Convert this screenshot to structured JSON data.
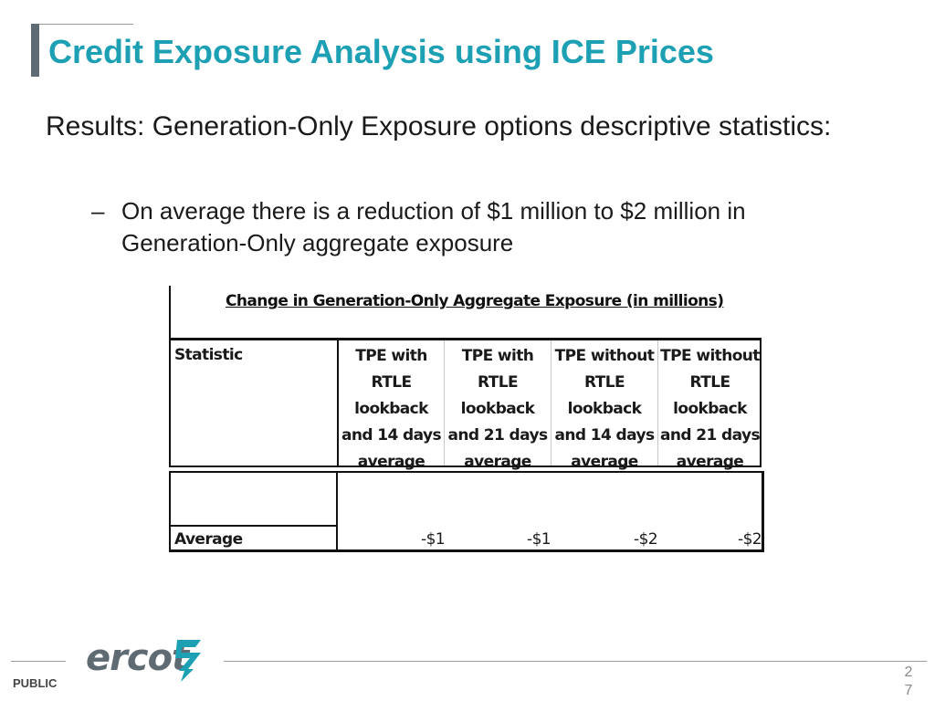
{
  "slide": {
    "title": "Credit Exposure Analysis using ICE Prices",
    "body": "Results: Generation-Only Exposure options descriptive statistics:",
    "bullet": "On average there is a reduction of $1 million to $2 million in Generation-Only aggregate exposure",
    "bullet_dash": "–"
  },
  "table": {
    "caption": "Change in Generation-Only Aggregate Exposure (in millions)",
    "header_statistic": "Statistic",
    "columns": [
      [
        "TPE with",
        "RTLE",
        "lookback",
        "and 14 days",
        "average"
      ],
      [
        "TPE with",
        "RTLE",
        "lookback",
        "and 21 days",
        "average"
      ],
      [
        "TPE without",
        "RTLE",
        "lookback",
        "and 14 days",
        "average"
      ],
      [
        "TPE without",
        "RTLE",
        "lookback",
        "and 21 days",
        "average"
      ]
    ],
    "rows": [
      {
        "label": "Average",
        "values": [
          "-$1",
          "-$1",
          "-$2",
          "-$2"
        ]
      }
    ]
  },
  "footer": {
    "logo_text": "ercot",
    "public_label": "PUBLIC",
    "page_number": "27"
  },
  "colors": {
    "title": "#1ea0b4",
    "accent_bar": "#5f6b73",
    "logo": "#5f6b73",
    "logo_mark": "#1ea0b4"
  }
}
